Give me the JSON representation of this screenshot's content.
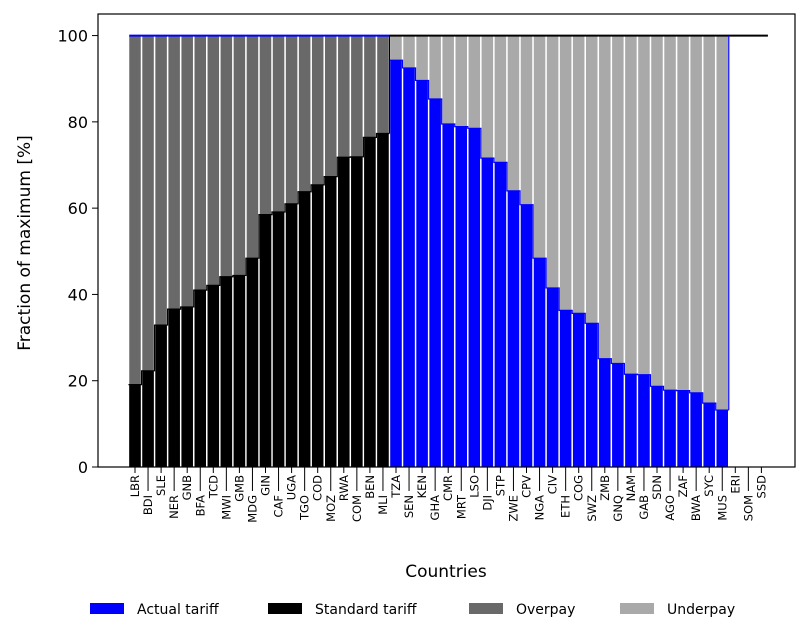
{
  "chart_data": {
    "type": "bar",
    "xlabel": "Countries",
    "ylabel": "Fraction of maximum [%]",
    "ylim": [
      0,
      105
    ],
    "yticks": [
      0,
      20,
      40,
      60,
      80,
      100
    ],
    "legend": {
      "placement": "bottom",
      "entries": [
        {
          "key": "actual",
          "label": "Actual tariff",
          "color": "#0000ff"
        },
        {
          "key": "standard",
          "label": "Standard tariff",
          "color": "#000000"
        },
        {
          "key": "overpay",
          "label": "Overpay",
          "color": "#696969"
        },
        {
          "key": "underpay",
          "label": "Underpay",
          "color": "#a9a9a9"
        }
      ]
    },
    "categories": [
      "LBR",
      "BDI",
      "SLE",
      "NER",
      "GNB",
      "BFA",
      "TCD",
      "MWI",
      "GMB",
      "MDG",
      "GIN",
      "CAF",
      "UGA",
      "TGO",
      "COD",
      "MOZ",
      "RWA",
      "COM",
      "BEN",
      "MLI",
      "TZA",
      "SEN",
      "KEN",
      "GHA",
      "CMR",
      "MRT",
      "LSO",
      "DJI",
      "STP",
      "ZWE",
      "CPV",
      "NGA",
      "CIV",
      "ETH",
      "COG",
      "SWZ",
      "ZMB",
      "GNQ",
      "NAM",
      "GAB",
      "SDN",
      "AGO",
      "ZAF",
      "BWA",
      "SYC",
      "MUS",
      "ERI",
      "SOM",
      "SSD"
    ],
    "series": [
      {
        "name": "Standard tariff",
        "color": "#000000",
        "values": [
          19.1,
          22.3,
          32.9,
          36.6,
          37.1,
          41.0,
          42.1,
          44.1,
          44.4,
          48.4,
          58.5,
          59.1,
          61.0,
          63.8,
          65.4,
          67.3,
          71.8,
          71.9,
          76.4,
          77.3,
          null,
          null,
          null,
          null,
          null,
          null,
          null,
          null,
          null,
          null,
          null,
          null,
          null,
          null,
          null,
          null,
          null,
          null,
          null,
          null,
          null,
          null,
          null,
          null,
          null,
          null,
          null,
          null,
          null
        ]
      },
      {
        "name": "Actual tariff",
        "color": "#0000ff",
        "values": [
          null,
          null,
          null,
          null,
          null,
          null,
          null,
          null,
          null,
          null,
          null,
          null,
          null,
          null,
          null,
          null,
          null,
          null,
          null,
          null,
          94.3,
          92.5,
          89.6,
          85.3,
          79.5,
          78.9,
          78.5,
          71.6,
          70.6,
          64.0,
          60.8,
          48.4,
          41.5,
          36.3,
          35.6,
          33.3,
          25.1,
          24.0,
          21.5,
          21.4,
          18.7,
          17.8,
          17.7,
          17.2,
          14.8,
          13.2,
          null,
          null,
          null
        ]
      }
    ],
    "overpay": {
      "color": "#696969",
      "from_index": 0,
      "to_index": 19,
      "top": 100
    },
    "underpay": {
      "color": "#a9a9a9",
      "from_index": 20,
      "to_index": 45,
      "top": 100
    },
    "max_line": {
      "blue_segment_indices": [
        0,
        19
      ],
      "black_segment_indices": [
        20,
        48
      ],
      "value": 100
    }
  }
}
